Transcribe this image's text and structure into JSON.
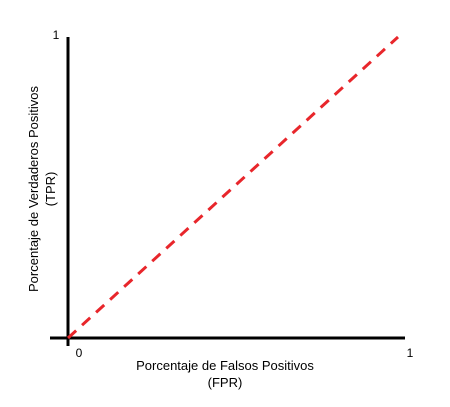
{
  "chart_data": {
    "type": "line",
    "title": "",
    "xlabel": [
      "Porcentaje de Falsos Positivos",
      "(FPR)"
    ],
    "ylabel": [
      "Porcentaje de Verdaderos Positivos",
      "(TPR)"
    ],
    "xlim": [
      0,
      1
    ],
    "ylim": [
      0,
      1
    ],
    "x_ticks": [
      "0",
      "1"
    ],
    "y_ticks": [
      "1"
    ],
    "grid": false,
    "legend": "none",
    "series": [
      {
        "x": [
          0,
          1
        ],
        "y": [
          0,
          1
        ],
        "color": "#e8262b",
        "style": "dashed"
      }
    ],
    "colors": {
      "axis": "#000000",
      "line": "#e8262b"
    }
  }
}
